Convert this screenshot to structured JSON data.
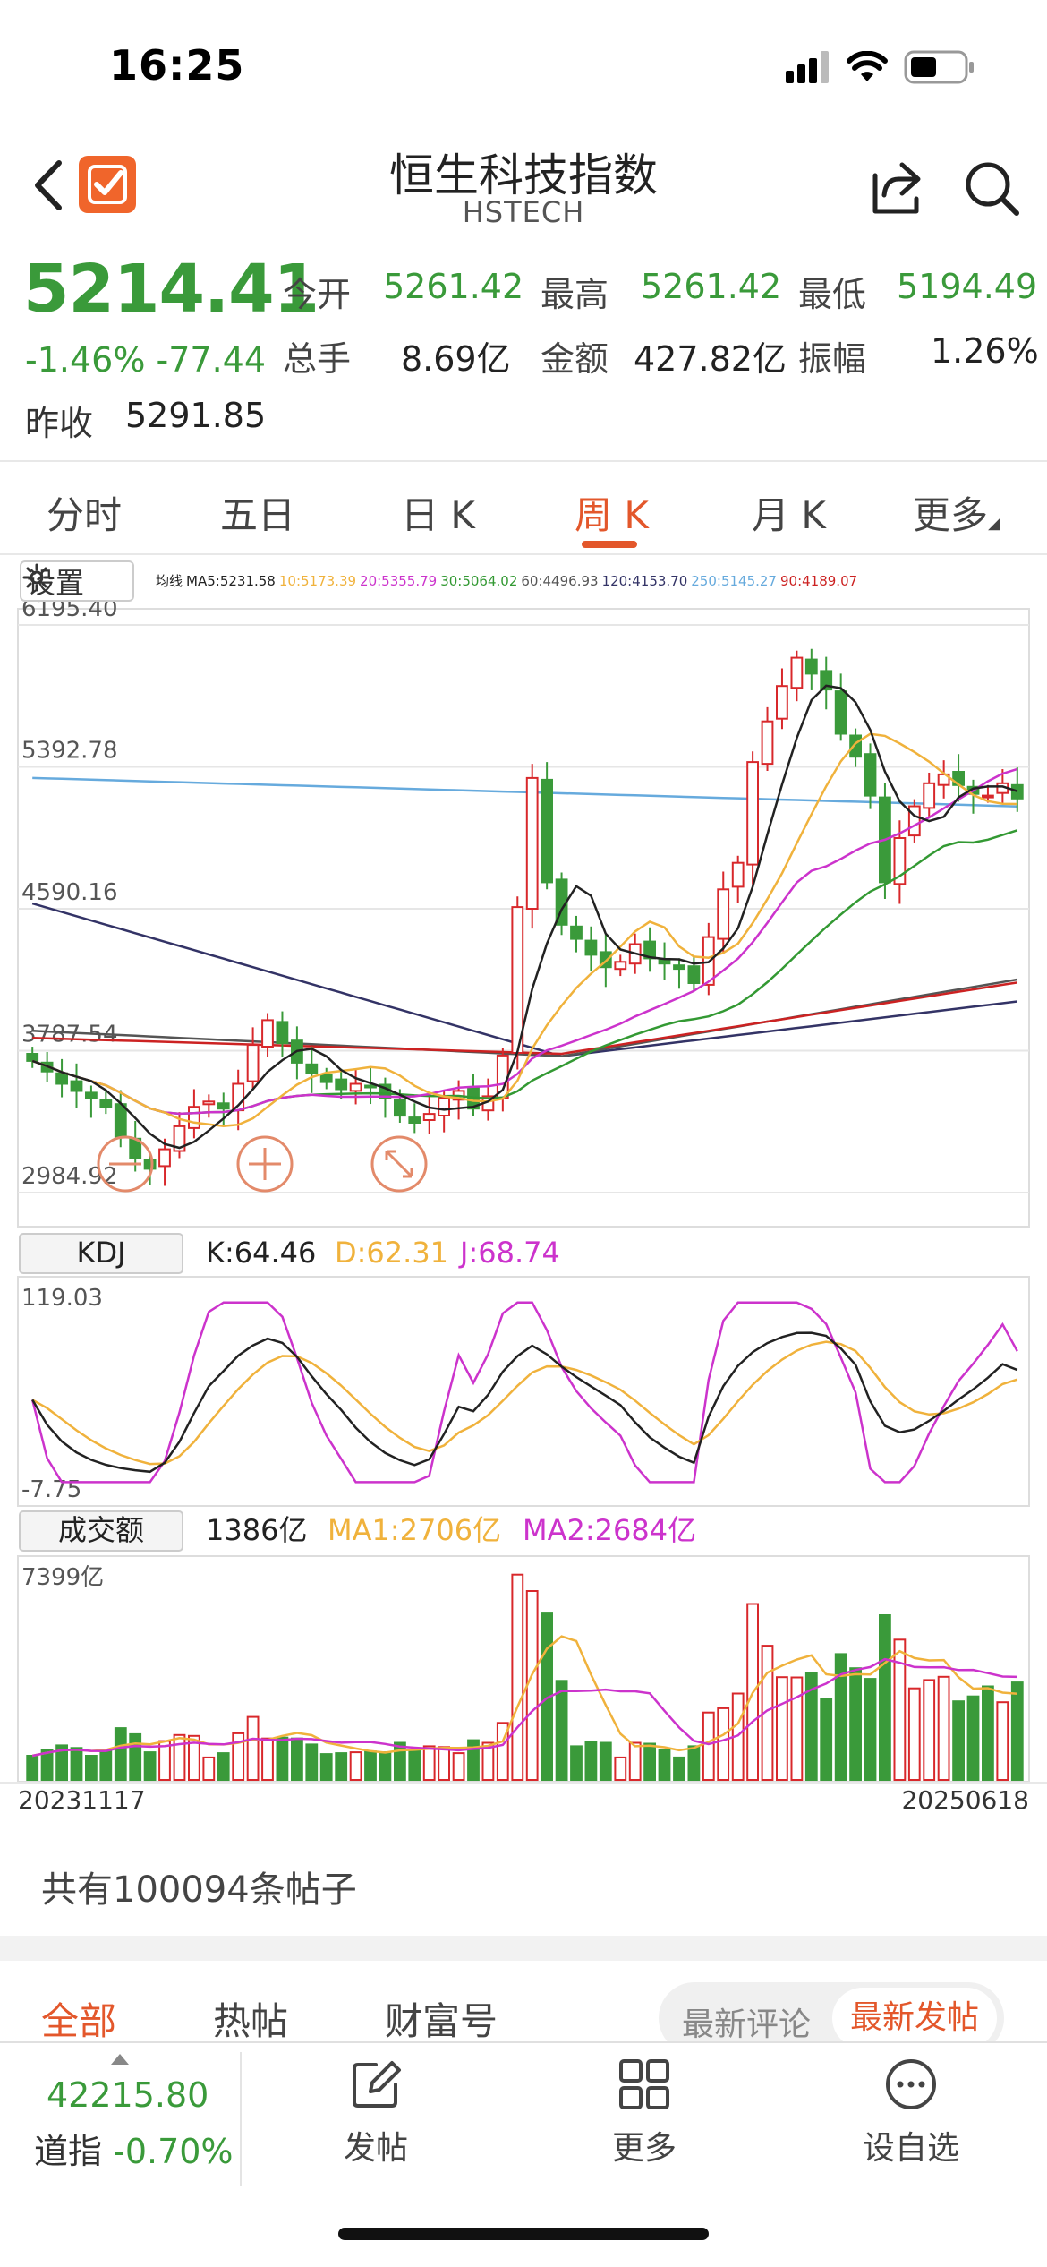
{
  "status_bar": {
    "time": "16:25"
  },
  "header": {
    "title": "恒生科技指数",
    "subtitle": "HSTECH"
  },
  "quote": {
    "price": "5214.41",
    "change": "-1.46% -77.44",
    "prev_close_label": "昨收",
    "prev_close": "5291.85",
    "stats": [
      {
        "label": "今开",
        "value": "5261.42"
      },
      {
        "label": "最高",
        "value": "5261.42"
      },
      {
        "label": "最低",
        "value": "5194.49"
      },
      {
        "label": "总手",
        "value": "8.69亿"
      },
      {
        "label": "金额",
        "value": "427.82亿"
      },
      {
        "label": "振幅",
        "value": "1.26%"
      }
    ]
  },
  "tabs": [
    "分时",
    "五日",
    "日 K",
    "周 K",
    "月 K",
    "更多"
  ],
  "active_tab": "周 K",
  "settings_label": "设置",
  "ma_legend": [
    {
      "text": "均线",
      "color": "#222222"
    },
    {
      "text": "MA5:5231.58",
      "color": "#222222"
    },
    {
      "text": "10:5173.39",
      "color": "#f0b23c"
    },
    {
      "text": "20:5355.79",
      "color": "#cc33cc"
    },
    {
      "text": "30:5064.02",
      "color": "#339933"
    },
    {
      "text": "60:4496.93",
      "color": "#555555"
    },
    {
      "text": "120:4153.70",
      "color": "#333366"
    },
    {
      "text": "250:5145.27",
      "color": "#66aadd"
    },
    {
      "text": "90:4189.07",
      "color": "#cc2222"
    }
  ],
  "colors": {
    "up": "#d8282b",
    "down": "#3a9a3a",
    "accent": "#e3572b"
  },
  "chart_data": [
    {
      "type": "candlestick",
      "title": "周 K",
      "y_ticks": [
        "6195.40",
        "5392.78",
        "4590.16",
        "3787.54",
        "2984.92"
      ],
      "ylim": [
        2984.92,
        6195.4
      ],
      "close": [
        3730,
        3670,
        3600,
        3560,
        3520,
        3470,
        3300,
        3180,
        3120,
        3230,
        3360,
        3470,
        3500,
        3460,
        3600,
        3820,
        3960,
        3830,
        3720,
        3660,
        3610,
        3570,
        3600,
        3580,
        3520,
        3420,
        3380,
        3430,
        3520,
        3560,
        3460,
        3530,
        3760,
        4600,
        5330,
        4740,
        4500,
        4420,
        4330,
        4260,
        4290,
        4390,
        4310,
        4280,
        4250,
        4170,
        4430,
        4700,
        4850,
        5420,
        5650,
        5850,
        6010,
        5920,
        5830,
        5580,
        5450,
        5230,
        4740,
        4990,
        5170,
        5300,
        5350,
        5290,
        5240,
        5230,
        5300,
        5214
      ]
    },
    {
      "type": "line",
      "title": "KDJ",
      "values": {
        "K": "64.46",
        "D": "62.31",
        "J": "68.74"
      },
      "y_ticks": [
        "119.03",
        "-7.75"
      ],
      "ylim": [
        -7.75,
        119.03
      ]
    },
    {
      "type": "bar",
      "title": "成交额",
      "values": {
        "current": "1386亿",
        "MA1": "2706亿",
        "MA2": "2684亿"
      },
      "y_ticks": [
        "7399亿"
      ],
      "x_ticks": [
        "20231117",
        "20250618"
      ]
    }
  ],
  "kdj_label": "KDJ",
  "kdj_k": "K:64.46",
  "kdj_d": "D:62.31",
  "kdj_j": "J:68.74",
  "vol_label": "成交额",
  "vol_val": "1386亿",
  "vol_ma1": "MA1:2706亿",
  "vol_ma2": "MA2:2684亿",
  "posts_count": "共有100094条帖子",
  "feed_tabs": [
    "全部",
    "热帖",
    "财富号"
  ],
  "sort_options": [
    "最新评论",
    "最新发帖"
  ],
  "bottom_bar": {
    "index_value": "42215.80",
    "index_name": "道指",
    "index_change": "-0.70%",
    "items": [
      "发帖",
      "更多",
      "设自选"
    ]
  }
}
